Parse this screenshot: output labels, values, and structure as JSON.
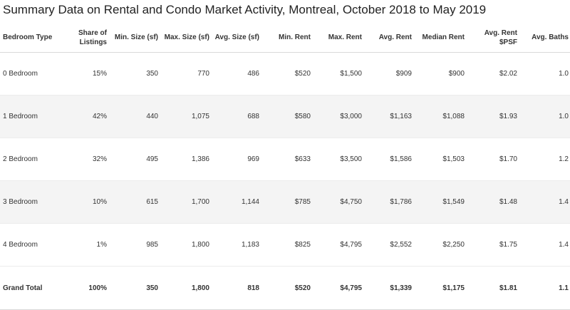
{
  "chart_data": {
    "type": "table",
    "title": "Summary Data on Rental and Condo Market Activity, Montreal, October 2018 to May 2019",
    "columns": [
      "Bedroom Type",
      "Share of Listings",
      "Min. Size (sf)",
      "Max. Size (sf)",
      "Avg. Size (sf)",
      "Min. Rent",
      "Max. Rent",
      "Avg. Rent",
      "Median Rent",
      "Avg. Rent $PSF",
      "Avg. Baths"
    ],
    "rows": [
      [
        "0 Bedroom",
        "15%",
        "350",
        "770",
        "486",
        "$520",
        "$1,500",
        "$909",
        "$900",
        "$2.02",
        "1.0"
      ],
      [
        "1 Bedroom",
        "42%",
        "440",
        "1,075",
        "688",
        "$580",
        "$3,000",
        "$1,163",
        "$1,088",
        "$1.93",
        "1.0"
      ],
      [
        "2 Bedroom",
        "32%",
        "495",
        "1,386",
        "969",
        "$633",
        "$3,500",
        "$1,586",
        "$1,503",
        "$1.70",
        "1.2"
      ],
      [
        "3 Bedroom",
        "10%",
        "615",
        "1,700",
        "1,144",
        "$785",
        "$4,750",
        "$1,786",
        "$1,549",
        "$1.48",
        "1.4"
      ],
      [
        "4 Bedroom",
        "1%",
        "985",
        "1,800",
        "1,183",
        "$825",
        "$4,795",
        "$2,552",
        "$2,250",
        "$1.75",
        "1.4"
      ]
    ],
    "total": [
      "Grand Total",
      "100%",
      "350",
      "1,800",
      "818",
      "$520",
      "$4,795",
      "$1,339",
      "$1,175",
      "$1.81",
      "1.1"
    ]
  }
}
